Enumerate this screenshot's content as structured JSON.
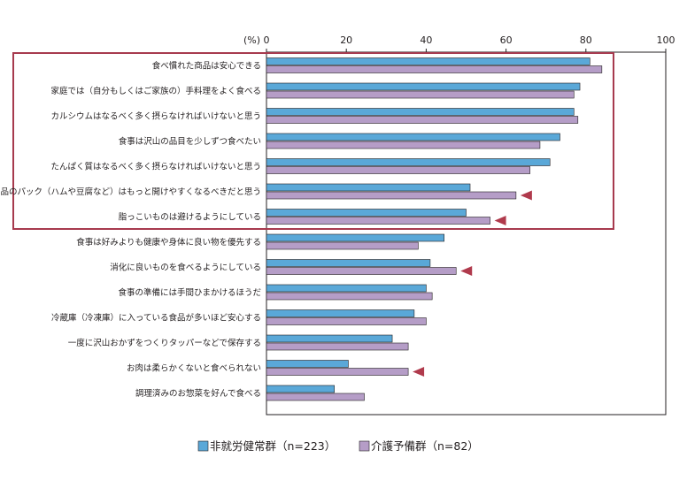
{
  "chart_data": {
    "type": "bar",
    "orientation": "horizontal",
    "unit_label": "(%)",
    "xlim": [
      0,
      100
    ],
    "x_ticks": [
      "0",
      "20",
      "40",
      "60",
      "80",
      "100"
    ],
    "categories": [
      "食べ慣れた商品は安心できる",
      "家庭では（自分もしくはご家族の）手料理をよく食べる",
      "カルシウムはなるべく多く摂らなければいけないと思う",
      "食事は沢山の品目を少しずつ食べたい",
      "たんぱく質はなるべく多く摂らなければいけないと思う",
      "商品のパック（ハムや豆腐など）はもっと開けやすくなるべきだと思う",
      "脂っこいものは避けるようにしている",
      "食事は好みよりも健康や身体に良い物を優先する",
      "消化に良いものを食べるようにしている",
      "食事の準備には手間ひまかけるほうだ",
      "冷蔵庫（冷凍庫）に入っている食品が多いほど安心する",
      "一度に沢山おかずをつくりタッパーなどで保存する",
      "お肉は柔らかくないと食べられない",
      "調理済みのお惣菜を好んで食べる"
    ],
    "series": [
      {
        "name": "非就労健常群（n=223）",
        "color": "#5aa8d8",
        "values": [
          81,
          78.5,
          77,
          73.5,
          71,
          51,
          50,
          44.5,
          41,
          40,
          37,
          31.5,
          20.5,
          17
        ]
      },
      {
        "name": "介護予備群（n=82）",
        "color": "#b59dc7",
        "values": [
          84,
          77,
          78,
          68.5,
          66,
          62.5,
          56,
          38,
          47.5,
          41.5,
          40,
          35.5,
          35.5,
          24.5
        ]
      }
    ],
    "highlight_box_categories": [
      0,
      1,
      2,
      3,
      4,
      5,
      6
    ],
    "highlight_color": "#a73a4e",
    "arrow_marked_categories": [
      5,
      6,
      8,
      12
    ],
    "arrow_color": "#b03a4c",
    "grid": false,
    "legend_position": "bottom"
  }
}
